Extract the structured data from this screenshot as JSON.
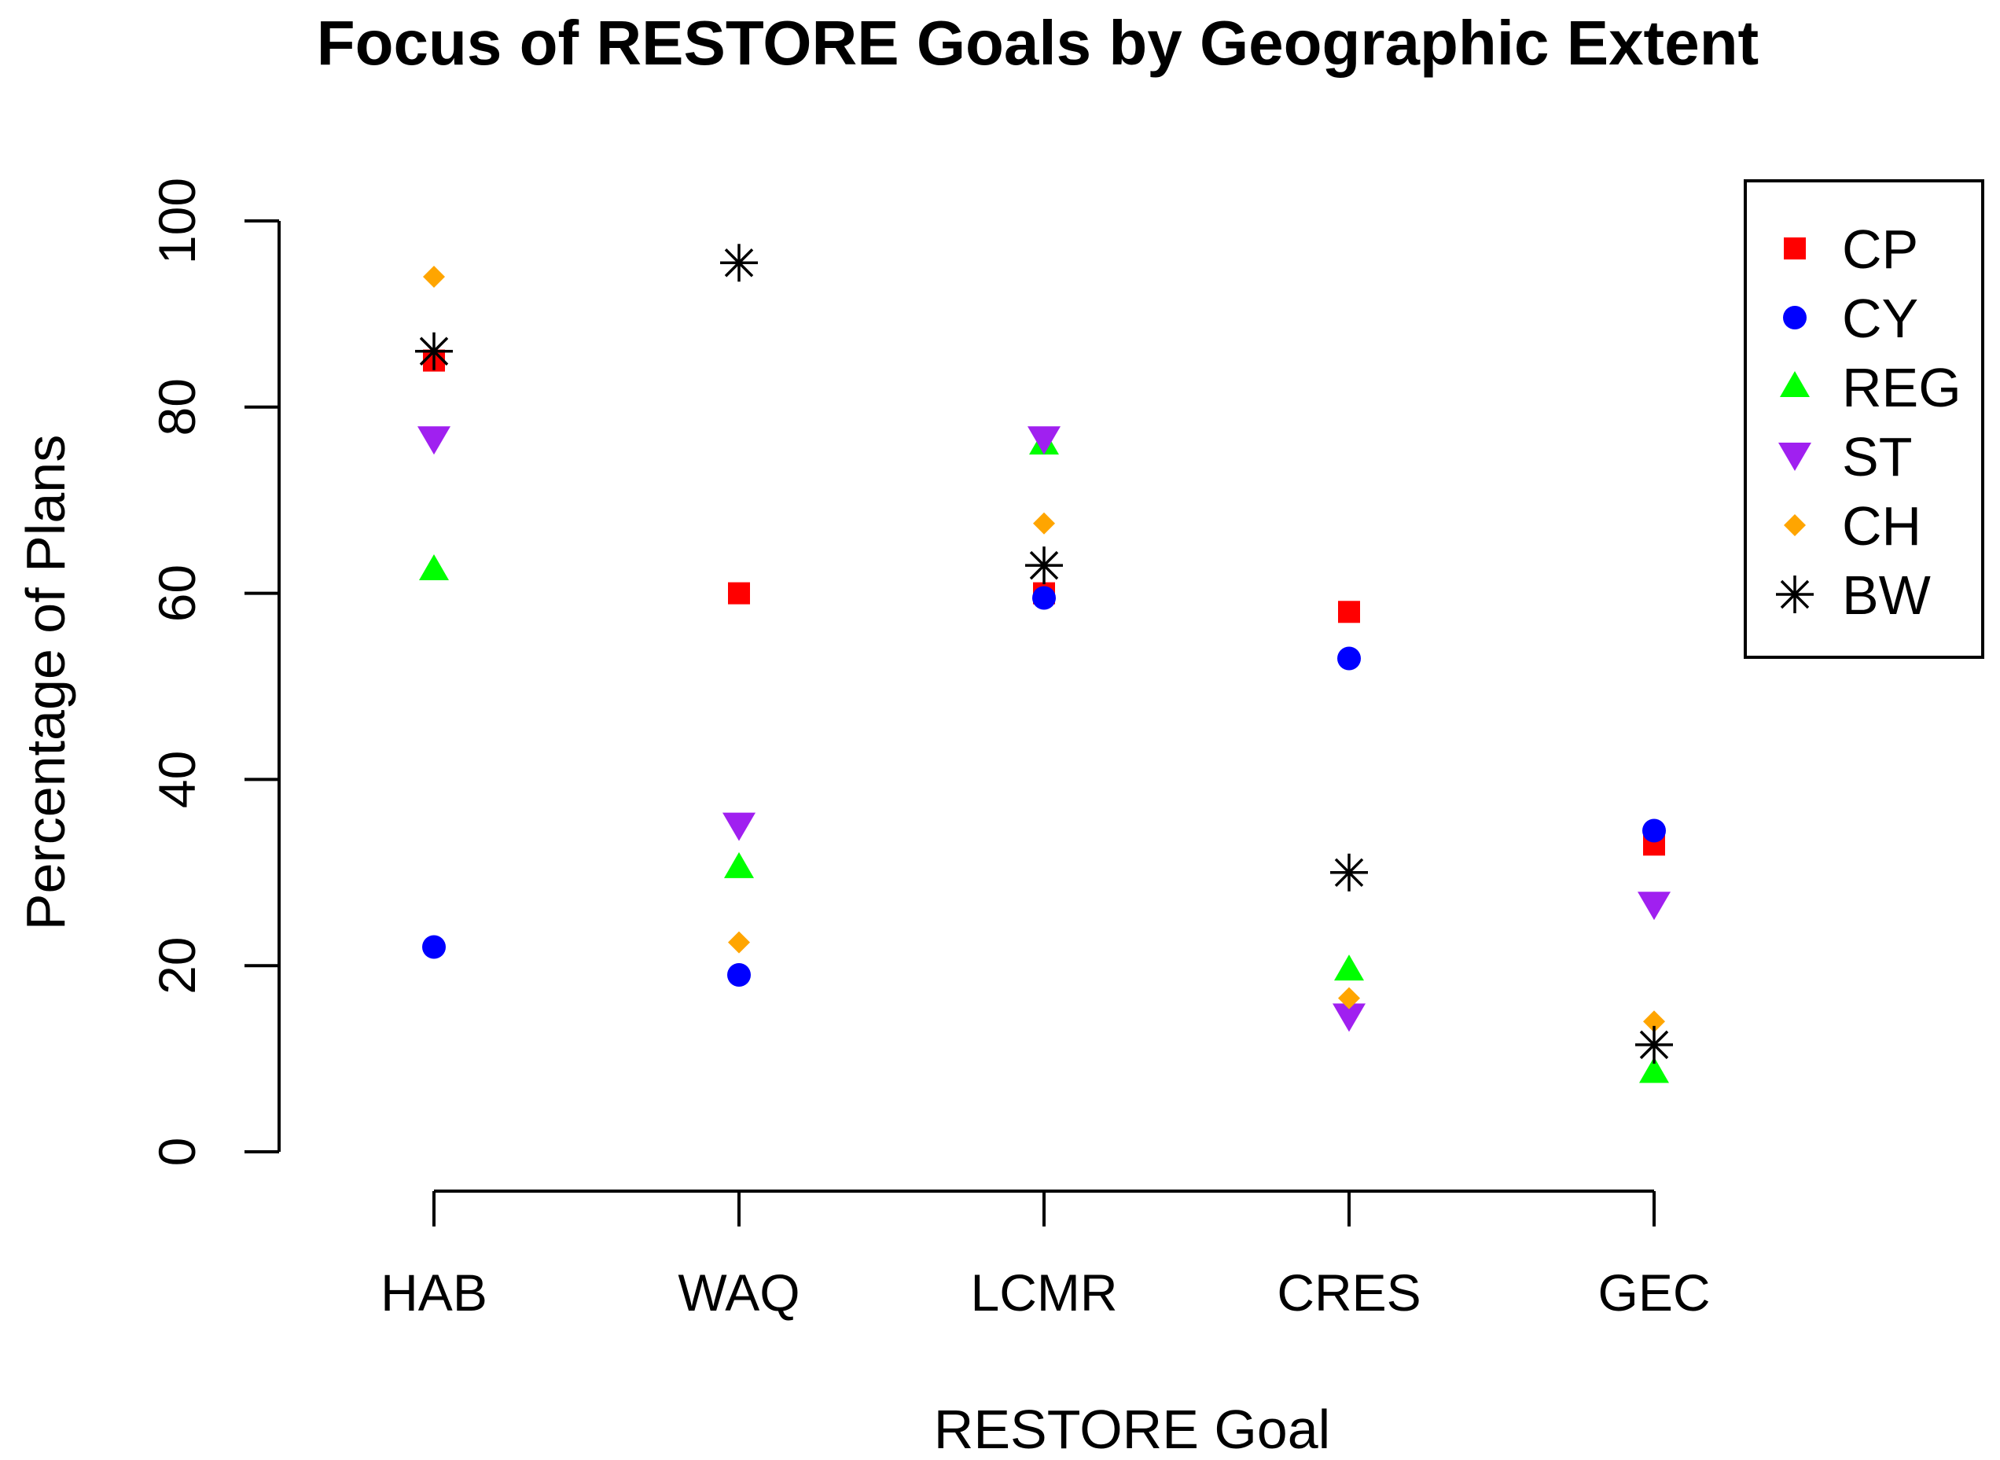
{
  "chart_data": {
    "type": "scatter",
    "title": "Focus of RESTORE Goals by Geographic Extent",
    "xlabel": "RESTORE Goal",
    "ylabel": "Percentage of Plans",
    "categories": [
      "HAB",
      "WAQ",
      "LCMR",
      "CRES",
      "GEC"
    ],
    "ylim": [
      0,
      100
    ],
    "yticks": [
      0,
      20,
      40,
      60,
      80,
      100
    ],
    "ytick_labels": [
      "0",
      "20",
      "40",
      "60",
      "80",
      "100"
    ],
    "grid": false,
    "legend_position": "top-right",
    "series": [
      {
        "name": "CP",
        "marker": "square",
        "color": "#ff0000",
        "values": [
          85,
          60,
          60,
          58,
          33
        ]
      },
      {
        "name": "CY",
        "marker": "circle",
        "color": "#0000ff",
        "values": [
          22,
          19,
          59.5,
          53,
          34.5
        ]
      },
      {
        "name": "REG",
        "marker": "triangle-up",
        "color": "#00ff00",
        "values": [
          62.5,
          30.5,
          76,
          19.5,
          8.5
        ]
      },
      {
        "name": "ST",
        "marker": "triangle-down",
        "color": "#a020f0",
        "values": [
          76.5,
          35,
          76.5,
          14.5,
          26.5
        ]
      },
      {
        "name": "CH",
        "marker": "diamond",
        "color": "#ffa500",
        "values": [
          94,
          22.5,
          67.5,
          16.5,
          14
        ]
      },
      {
        "name": "BW",
        "marker": "asterisk",
        "color": "#000000",
        "values": [
          86,
          95.5,
          63,
          30,
          11.5
        ]
      }
    ]
  }
}
